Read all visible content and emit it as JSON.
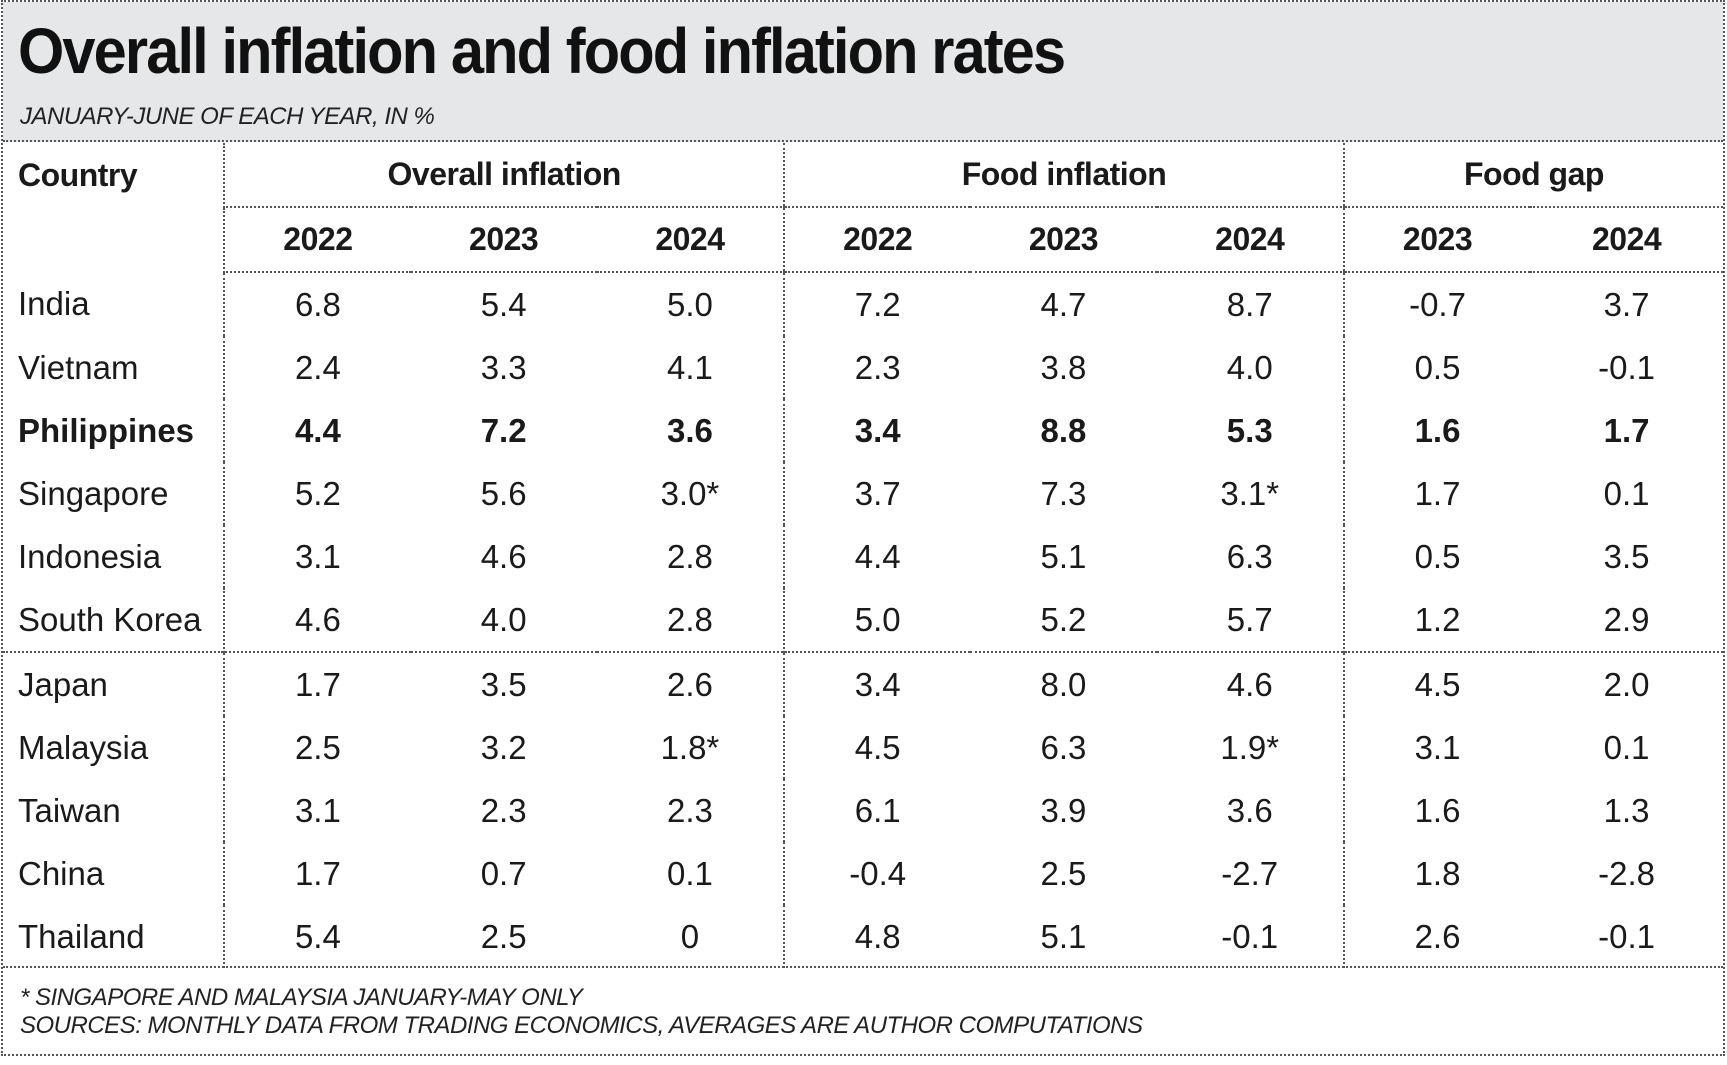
{
  "title": "Overall inflation and food inflation rates",
  "subtitle": "JANUARY-JUNE OF EACH YEAR, IN %",
  "headers": {
    "country": "Country",
    "groups": [
      "Overall inflation",
      "Food inflation",
      "Food gap"
    ],
    "years": [
      "2022",
      "2023",
      "2024",
      "2022",
      "2023",
      "2024",
      "2023",
      "2024"
    ]
  },
  "rows": [
    {
      "country": "India",
      "values": [
        "6.8",
        "5.4",
        "5.0",
        "7.2",
        "4.7",
        "8.7",
        "-0.7",
        "3.7"
      ]
    },
    {
      "country": "Vietnam",
      "values": [
        "2.4",
        "3.3",
        "4.1",
        "2.3",
        "3.8",
        "4.0",
        "0.5",
        "-0.1"
      ]
    },
    {
      "country": "Philippines",
      "values": [
        "4.4",
        "7.2",
        "3.6",
        "3.4",
        "8.8",
        "5.3",
        "1.6",
        "1.7"
      ],
      "highlight": true
    },
    {
      "country": "Singapore",
      "values": [
        "5.2",
        "5.6",
        "3.0*",
        "3.7",
        "7.3",
        "3.1*",
        "1.7",
        "0.1"
      ]
    },
    {
      "country": "Indonesia",
      "values": [
        "3.1",
        "4.6",
        "2.8",
        "4.4",
        "5.1",
        "6.3",
        "0.5",
        "3.5"
      ]
    },
    {
      "country": "South Korea",
      "values": [
        "4.6",
        "4.0",
        "2.8",
        "5.0",
        "5.2",
        "5.7",
        "1.2",
        "2.9"
      ]
    },
    {
      "country": "Japan",
      "values": [
        "1.7",
        "3.5",
        "2.6",
        "3.4",
        "8.0",
        "4.6",
        "4.5",
        "2.0"
      ]
    },
    {
      "country": "Malaysia",
      "values": [
        "2.5",
        "3.2",
        "1.8*",
        "4.5",
        "6.3",
        "1.9*",
        "3.1",
        "0.1"
      ]
    },
    {
      "country": "Taiwan",
      "values": [
        "3.1",
        "2.3",
        "2.3",
        "6.1",
        "3.9",
        "3.6",
        "1.6",
        "1.3"
      ]
    },
    {
      "country": "China",
      "values": [
        "1.7",
        "0.7",
        "0.1",
        "-0.4",
        "2.5",
        "-2.7",
        "1.8",
        "-2.8"
      ]
    },
    {
      "country": "Thailand",
      "values": [
        "5.4",
        "2.5",
        "0",
        "4.8",
        "5.1",
        "-0.1",
        "2.6",
        "-0.1"
      ]
    }
  ],
  "group_break_after_row": 5,
  "notes": [
    "* SINGAPORE AND MALAYSIA JANUARY-MAY ONLY",
    "SOURCES: MONTHLY DATA FROM TRADING ECONOMICS, AVERAGES ARE AUTHOR COMPUTATIONS"
  ],
  "colors": {
    "header_bg": "#e6e7e8",
    "text": "#1a1a1a",
    "rule": "#555555"
  },
  "chart_data": {
    "type": "table",
    "title": "Overall inflation and food inflation rates",
    "subtitle": "JANUARY-JUNE OF EACH YEAR, IN %",
    "columns": [
      "Country",
      "Overall inflation 2022",
      "Overall inflation 2023",
      "Overall inflation 2024",
      "Food inflation 2022",
      "Food inflation 2023",
      "Food inflation 2024",
      "Food gap 2023",
      "Food gap 2024"
    ],
    "rows": [
      [
        "India",
        6.8,
        5.4,
        5.0,
        7.2,
        4.7,
        8.7,
        -0.7,
        3.7
      ],
      [
        "Vietnam",
        2.4,
        3.3,
        4.1,
        2.3,
        3.8,
        4.0,
        0.5,
        -0.1
      ],
      [
        "Philippines",
        4.4,
        7.2,
        3.6,
        3.4,
        8.8,
        5.3,
        1.6,
        1.7
      ],
      [
        "Singapore",
        5.2,
        5.6,
        3.0,
        3.7,
        7.3,
        3.1,
        1.7,
        0.1
      ],
      [
        "Indonesia",
        3.1,
        4.6,
        2.8,
        4.4,
        5.1,
        6.3,
        0.5,
        3.5
      ],
      [
        "South Korea",
        4.6,
        4.0,
        2.8,
        5.0,
        5.2,
        5.7,
        1.2,
        2.9
      ],
      [
        "Japan",
        1.7,
        3.5,
        2.6,
        3.4,
        8.0,
        4.6,
        4.5,
        2.0
      ],
      [
        "Malaysia",
        2.5,
        3.2,
        1.8,
        4.5,
        6.3,
        1.9,
        3.1,
        0.1
      ],
      [
        "Taiwan",
        3.1,
        2.3,
        2.3,
        6.1,
        3.9,
        3.6,
        1.6,
        1.3
      ],
      [
        "China",
        1.7,
        0.7,
        0.1,
        -0.4,
        2.5,
        -2.7,
        1.8,
        -2.8
      ],
      [
        "Thailand",
        5.4,
        2.5,
        0,
        4.8,
        5.1,
        -0.1,
        2.6,
        -0.1
      ]
    ]
  }
}
